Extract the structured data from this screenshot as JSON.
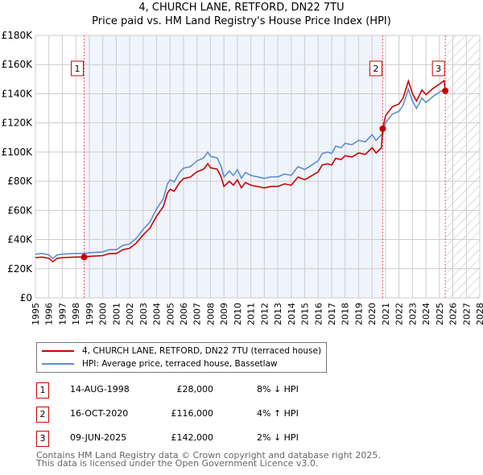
{
  "chart_data": {
    "type": "line",
    "title": "4, CHURCH LANE, RETFORD, DN22 7TU",
    "subtitle": "Price paid vs. HM Land Registry's House Price Index (HPI)",
    "xlim": [
      1995,
      2028
    ],
    "ylim": [
      0,
      180000
    ],
    "x_ticks": [
      "1995",
      "1996",
      "1997",
      "1998",
      "1999",
      "2000",
      "2001",
      "2002",
      "2003",
      "2004",
      "2005",
      "2006",
      "2007",
      "2008",
      "2009",
      "2010",
      "2011",
      "2012",
      "2013",
      "2014",
      "2015",
      "2016",
      "2017",
      "2018",
      "2019",
      "2020",
      "2021",
      "2022",
      "2023",
      "2024",
      "2025",
      "2026",
      "2027",
      "2028"
    ],
    "y_ticks": [
      {
        "v": 0,
        "label": "£0"
      },
      {
        "v": 20000,
        "label": "£20K"
      },
      {
        "v": 40000,
        "label": "£40K"
      },
      {
        "v": 60000,
        "label": "£60K"
      },
      {
        "v": 80000,
        "label": "£80K"
      },
      {
        "v": 100000,
        "label": "£100K"
      },
      {
        "v": 120000,
        "label": "£120K"
      },
      {
        "v": 140000,
        "label": "£140K"
      },
      {
        "v": 160000,
        "label": "£160K"
      },
      {
        "v": 180000,
        "label": "£180K"
      }
    ],
    "grid": true,
    "shaded_range": [
      1998.62,
      2020.79
    ],
    "hatched_from": 2025.44,
    "series": [
      {
        "name": "4, CHURCH LANE, RETFORD, DN22 7TU (terraced house)",
        "color": "#cc0000",
        "x": [
          1995,
          1995.5,
          1996,
          1996.3,
          1996.6,
          1997,
          1998,
          1998.62,
          1999,
          2000,
          2000.5,
          2001,
          2001.5,
          2002,
          2002.5,
          2003,
          2003.5,
          2004,
          2004.5,
          2004.8,
          2005,
          2005.3,
          2005.7,
          2006,
          2006.5,
          2007,
          2007.5,
          2007.8,
          2008,
          2008.5,
          2008.8,
          2009,
          2009.4,
          2009.7,
          2010,
          2010.3,
          2010.6,
          2011,
          2011.5,
          2012,
          2012.5,
          2013,
          2013.5,
          2014,
          2014.5,
          2015,
          2015.5,
          2016,
          2016.3,
          2016.7,
          2017,
          2017.3,
          2017.7,
          2018,
          2018.5,
          2019,
          2019.5,
          2020,
          2020.3,
          2020.7,
          2020.79,
          2021,
          2021.5,
          2022,
          2022.3,
          2022.7,
          2023,
          2023.3,
          2023.7,
          2024,
          2024.5,
          2025,
          2025.35,
          2025.44
        ],
        "y": [
          27600,
          28000,
          27100,
          24800,
          27100,
          27600,
          28000,
          28000,
          28500,
          29000,
          30400,
          30400,
          33100,
          34000,
          37700,
          43200,
          47800,
          56000,
          62600,
          71800,
          74500,
          73100,
          79000,
          81900,
          82800,
          86500,
          88300,
          92000,
          89200,
          88300,
          82800,
          76400,
          80000,
          77300,
          81000,
          75400,
          79100,
          77300,
          76400,
          75400,
          76400,
          76400,
          78200,
          77300,
          82800,
          81000,
          83700,
          86500,
          91100,
          92000,
          91100,
          95700,
          94800,
          97500,
          96600,
          99400,
          98400,
          103000,
          99400,
          103000,
          116000,
          124800,
          131000,
          133000,
          137000,
          148700,
          140000,
          135000,
          142500,
          139400,
          143500,
          146600,
          149000,
          142000
        ]
      },
      {
        "name": "HPI: Average price, terraced house, Bassetlaw",
        "color": "#5b8fd0",
        "x": [
          1995,
          1995.5,
          1996,
          1996.3,
          1996.6,
          1997,
          1998,
          1998.62,
          1999,
          2000,
          2000.5,
          2001,
          2001.5,
          2002,
          2002.5,
          2003,
          2003.5,
          2004,
          2004.5,
          2004.8,
          2005,
          2005.3,
          2005.7,
          2006,
          2006.5,
          2007,
          2007.5,
          2007.8,
          2008,
          2008.5,
          2008.8,
          2009,
          2009.4,
          2009.7,
          2010,
          2010.3,
          2010.6,
          2011,
          2011.5,
          2012,
          2012.5,
          2013,
          2013.5,
          2014,
          2014.5,
          2015,
          2015.5,
          2016,
          2016.3,
          2016.7,
          2017,
          2017.3,
          2017.7,
          2018,
          2018.5,
          2019,
          2019.5,
          2020,
          2020.3,
          2020.7,
          2020.79,
          2021,
          2021.5,
          2022,
          2022.3,
          2022.7,
          2023,
          2023.3,
          2023.7,
          2024,
          2024.5,
          2025,
          2025.35,
          2025.44
        ],
        "y": [
          30000,
          30500,
          29500,
          27000,
          29500,
          30000,
          30500,
          30500,
          31000,
          31500,
          33000,
          33000,
          36000,
          37000,
          41000,
          47000,
          52000,
          61000,
          68000,
          78000,
          81000,
          79500,
          86000,
          89000,
          90000,
          94000,
          96000,
          100000,
          97000,
          96000,
          90000,
          83000,
          87000,
          84000,
          88000,
          82000,
          86000,
          84000,
          83000,
          82000,
          83000,
          83000,
          85000,
          84000,
          90000,
          88000,
          91000,
          94000,
          99000,
          100000,
          99000,
          104000,
          103000,
          106000,
          105000,
          108000,
          107000,
          112000,
          108000,
          112000,
          112000,
          120000,
          126000,
          128000,
          132000,
          143000,
          135000,
          130000,
          137000,
          134000,
          138000,
          141000,
          143000,
          144000
        ]
      }
    ],
    "sales": [
      {
        "id": "1",
        "x": 1998.62,
        "price": 28000,
        "date": "14-AUG-1998",
        "price_label": "£28,000",
        "hpi_diff": "8% ↓ HPI"
      },
      {
        "id": "2",
        "x": 2020.79,
        "price": 116000,
        "date": "16-OCT-2020",
        "price_label": "£116,000",
        "hpi_diff": "4% ↑ HPI"
      },
      {
        "id": "3",
        "x": 2025.44,
        "price": 142000,
        "date": "09-JUN-2025",
        "price_label": "£142,000",
        "hpi_diff": "2% ↓ HPI"
      }
    ]
  },
  "legend": {
    "property": "4, CHURCH LANE, RETFORD, DN22 7TU (terraced house)",
    "hpi": "HPI: Average price, terraced house, Bassetlaw"
  },
  "footer": {
    "line1": "Contains HM Land Registry data © Crown copyright and database right 2025.",
    "line2": "This data is licensed under the Open Government Licence v3.0."
  }
}
